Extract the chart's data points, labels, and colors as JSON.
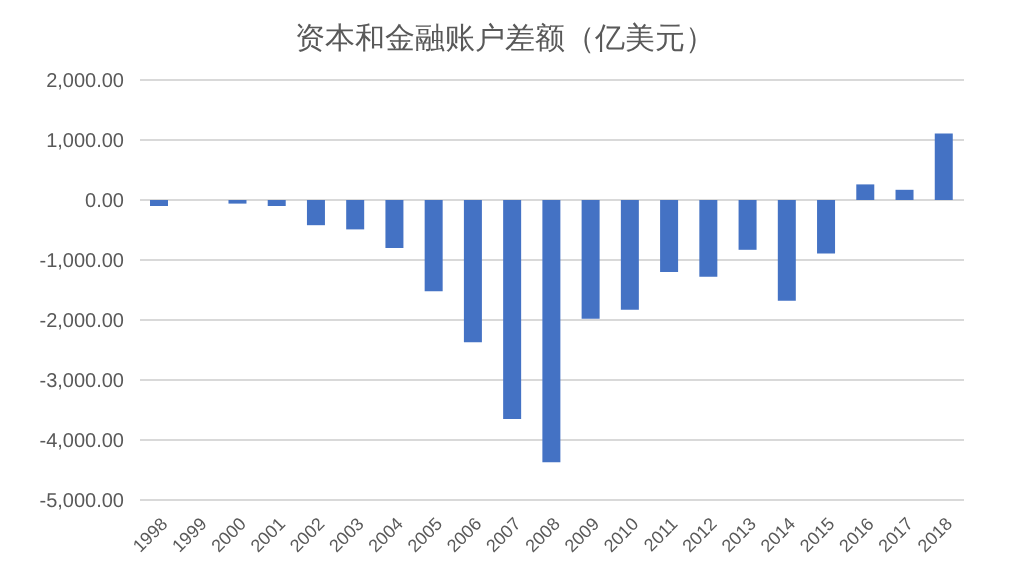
{
  "chart_data": {
    "type": "bar",
    "title": "资本和金融账户差额（亿美元）",
    "categories": [
      "1998",
      "1999",
      "2000",
      "2001",
      "2002",
      "2003",
      "2004",
      "2005",
      "2006",
      "2007",
      "2008",
      "2009",
      "2010",
      "2011",
      "2012",
      "2013",
      "2014",
      "2015",
      "2016",
      "2017",
      "2018"
    ],
    "values": [
      -100,
      0,
      -60,
      -100,
      -420,
      -490,
      -800,
      -1520,
      -2370,
      -3650,
      -4370,
      -1980,
      -1830,
      -1200,
      -1280,
      -830,
      -1680,
      -890,
      260,
      170,
      1110
    ],
    "color": "#4472c4",
    "ylim": [
      -5000,
      2000
    ],
    "yticks": [
      {
        "value": -5000,
        "label": "-5,000.00"
      },
      {
        "value": -4000,
        "label": "-4,000.00"
      },
      {
        "value": -3000,
        "label": "-3,000.00"
      },
      {
        "value": -2000,
        "label": "-2,000.00"
      },
      {
        "value": -1000,
        "label": "-1,000.00"
      },
      {
        "value": 0,
        "label": "0.00"
      },
      {
        "value": 1000,
        "label": "1,000.00"
      },
      {
        "value": 2000,
        "label": "2,000.00"
      }
    ],
    "grid": "y"
  }
}
